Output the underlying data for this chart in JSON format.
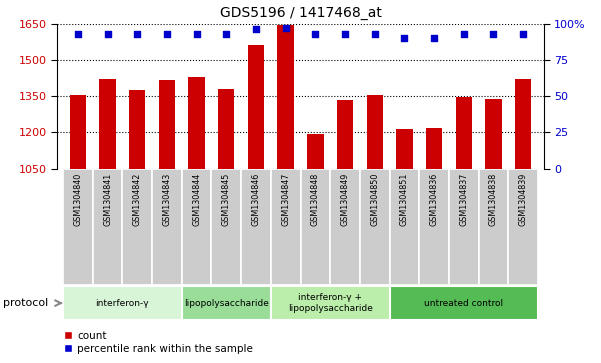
{
  "title": "GDS5196 / 1417468_at",
  "samples": [
    "GSM1304840",
    "GSM1304841",
    "GSM1304842",
    "GSM1304843",
    "GSM1304844",
    "GSM1304845",
    "GSM1304846",
    "GSM1304847",
    "GSM1304848",
    "GSM1304849",
    "GSM1304850",
    "GSM1304851",
    "GSM1304836",
    "GSM1304837",
    "GSM1304838",
    "GSM1304839"
  ],
  "counts": [
    1355,
    1420,
    1375,
    1415,
    1430,
    1380,
    1560,
    1645,
    1195,
    1335,
    1355,
    1215,
    1220,
    1345,
    1340,
    1420
  ],
  "percentile": [
    93,
    93,
    93,
    93,
    93,
    93,
    96,
    97,
    93,
    93,
    93,
    90,
    90,
    93,
    93,
    93
  ],
  "ymin": 1050,
  "ymax": 1650,
  "yticks": [
    1050,
    1200,
    1350,
    1500,
    1650
  ],
  "y2min": 0,
  "y2max": 100,
  "y2ticks": [
    0,
    25,
    50,
    75,
    100
  ],
  "bar_color": "#cc0000",
  "dot_color": "#0000cc",
  "protocols": [
    {
      "label": "interferon-γ",
      "start": 0,
      "end": 4,
      "color": "#d8f5d8"
    },
    {
      "label": "lipopolysaccharide",
      "start": 4,
      "end": 7,
      "color": "#99dd99"
    },
    {
      "label": "interferon-γ +\nlipopolysaccharide",
      "start": 7,
      "end": 11,
      "color": "#bbeeaa"
    },
    {
      "label": "untreated control",
      "start": 11,
      "end": 16,
      "color": "#55bb55"
    }
  ],
  "protocol_label": "protocol",
  "legend_count_label": "count",
  "legend_pct_label": "percentile rank within the sample",
  "bar_width": 0.55
}
